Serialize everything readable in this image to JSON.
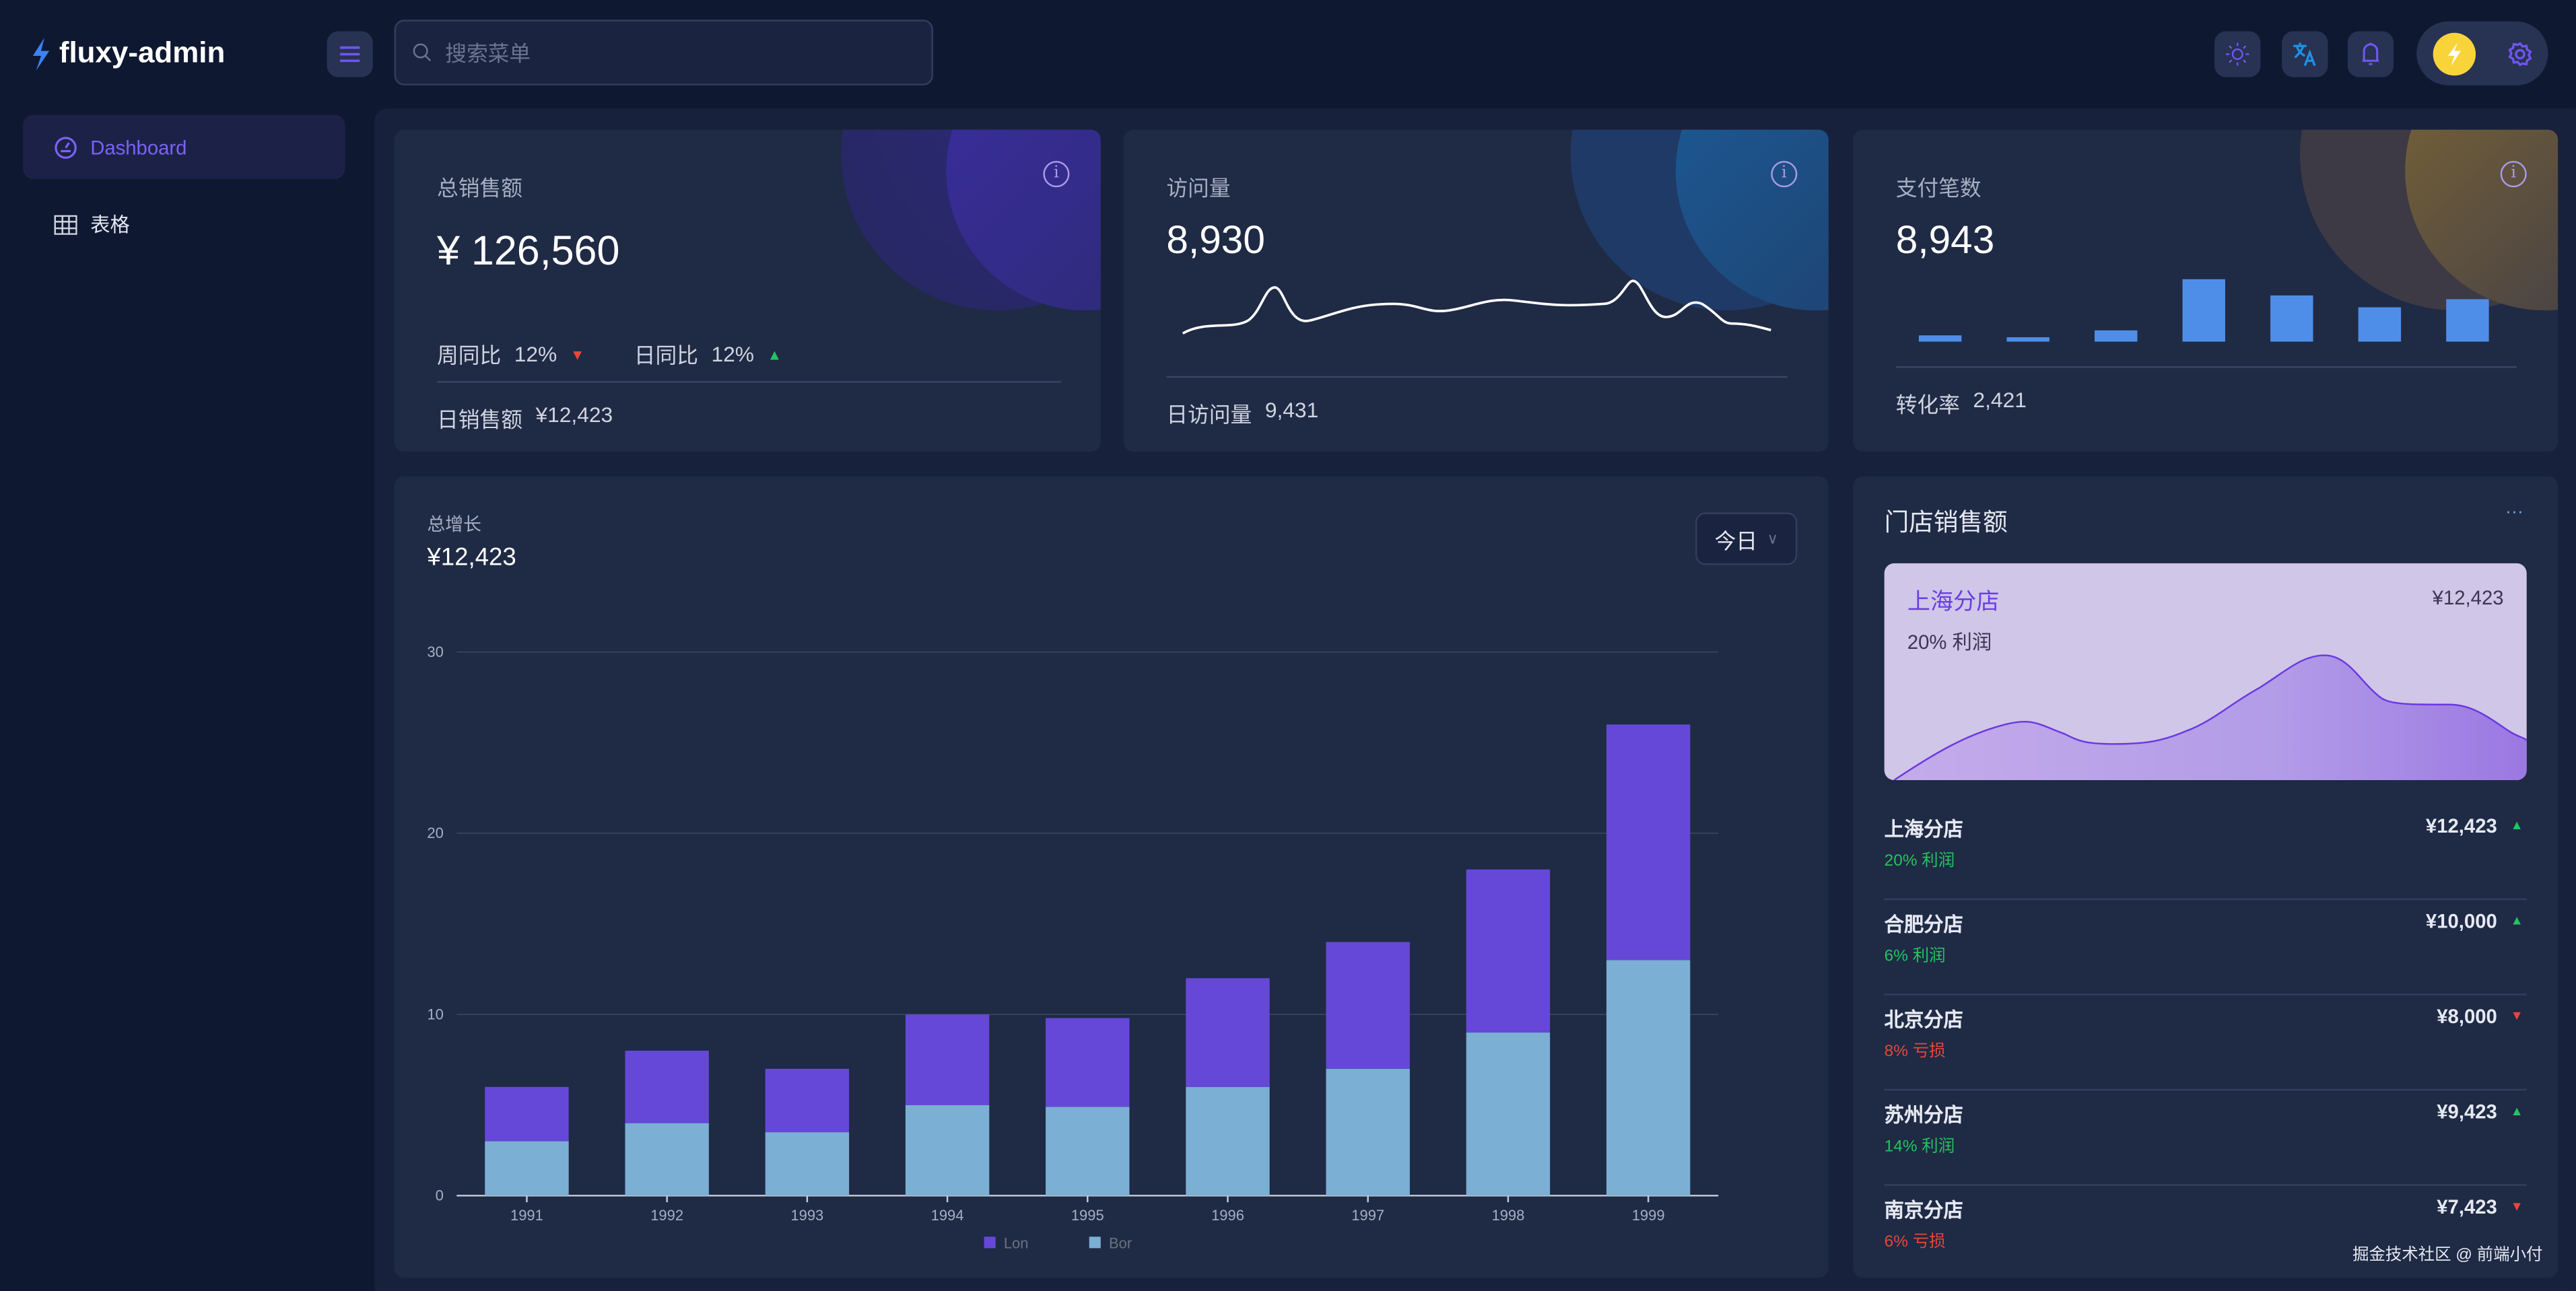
{
  "header": {
    "app_title": "fluxy-admin",
    "search_placeholder": "搜索菜单",
    "icons": [
      "bolt-icon",
      "menu-icon",
      "search-icon",
      "sun-icon",
      "translate-icon",
      "bell-icon",
      "bolt-avatar-icon",
      "gear-icon"
    ]
  },
  "sidebar": {
    "items": [
      {
        "label": "Dashboard",
        "icon": "dashboard-icon",
        "active": true
      },
      {
        "label": "表格",
        "icon": "table-icon",
        "active": false
      }
    ]
  },
  "cards": {
    "sales": {
      "title": "总销售额",
      "value": "¥ 126,560",
      "week_label": "周同比",
      "week_value": "12%",
      "week_trend": "down",
      "day_label": "日同比",
      "day_value": "12%",
      "day_trend": "up",
      "footer_label": "日销售额",
      "footer_value": "¥12,423"
    },
    "visits": {
      "title": "访问量",
      "value": "8,930",
      "footer_label": "日访问量",
      "footer_value": "9,431"
    },
    "payments": {
      "title": "支付笔数",
      "value": "8,943",
      "mini_bars": [
        1,
        0.7,
        1.8,
        10,
        7.4,
        5.5,
        6.8
      ],
      "footer_label": "转化率",
      "footer_value": "2,421"
    }
  },
  "growth": {
    "title": "总增长",
    "value": "¥12,423",
    "period_select": "今日"
  },
  "chart_data": {
    "type": "bar",
    "stacked": true,
    "categories": [
      "1991",
      "1992",
      "1993",
      "1994",
      "1995",
      "1996",
      "1997",
      "1998",
      "1999"
    ],
    "series": [
      {
        "name": "Bor",
        "color": "#7bafd4",
        "values": [
          3,
          4,
          3.5,
          5,
          4.9,
          6,
          7,
          9,
          13
        ]
      },
      {
        "name": "Lon",
        "color": "#6548d8",
        "values": [
          3,
          4,
          3.5,
          5,
          4.9,
          6,
          7,
          9,
          13
        ]
      }
    ],
    "ylim": [
      0,
      30
    ],
    "yticks": [
      0,
      10,
      20,
      30
    ],
    "grid": true,
    "legend": "bottom"
  },
  "stores": {
    "title": "门店销售额",
    "more": "···",
    "featured": {
      "name": "上海分店",
      "value": "¥12,423",
      "profit": "20% 利润"
    },
    "items": [
      {
        "name": "上海分店",
        "value": "¥12,423",
        "note": "20% 利润",
        "trend": "up"
      },
      {
        "name": "合肥分店",
        "value": "¥10,000",
        "note": "6% 利润",
        "trend": "up"
      },
      {
        "name": "北京分店",
        "value": "¥8,000",
        "note": "8% 亏损",
        "trend": "down"
      },
      {
        "name": "苏州分店",
        "value": "¥9,423",
        "note": "14% 利润",
        "trend": "up"
      },
      {
        "name": "南京分店",
        "value": "¥7,423",
        "note": "6% 亏损",
        "trend": "down"
      }
    ]
  },
  "watermark": "掘金技术社区 @ 前端小付",
  "colors": {
    "accent": "#6e56f0",
    "up": "#22c55e",
    "down": "#e5483a",
    "bg": "#0f1831",
    "card": "#1f2a45"
  }
}
